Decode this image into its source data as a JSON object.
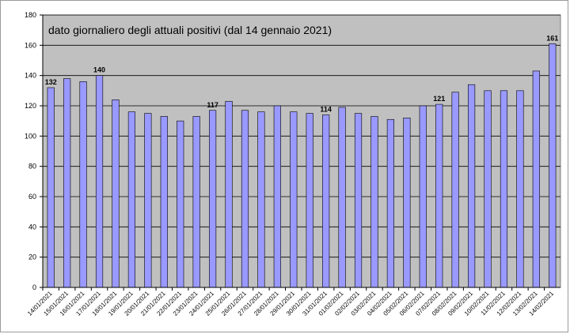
{
  "chart_data": {
    "type": "bar",
    "title": "dato giornaliero degli attuali positivi (dal 14 gennaio 2021)",
    "xlabel": "",
    "ylabel": "",
    "ylim": [
      0,
      180
    ],
    "yticks": [
      0,
      20,
      40,
      60,
      80,
      100,
      120,
      140,
      160,
      180
    ],
    "grid": true,
    "bar_color": "#9999ff",
    "plot_background": "#c0c0c0",
    "categories": [
      "14/01/2021",
      "15/01/2021",
      "16/01/2021",
      "17/01/2021",
      "18/01/2021",
      "19/01/2021",
      "20/01/2021",
      "21/01/2021",
      "22/01/2021",
      "23/01/2021",
      "24/01/2021",
      "25/01/2021",
      "26/01/2021",
      "27/01/2021",
      "28/01/2021",
      "29/01/2021",
      "30/01/2021",
      "31/01/2021",
      "01/02/2021",
      "02/02/2021",
      "03/02/2021",
      "04/02/2021",
      "05/02/2021",
      "06/02/2021",
      "07/02/2021",
      "08/02/2021",
      "09/02/2021",
      "10/02/2021",
      "11/02/2021",
      "12/02/2021",
      "13/02/2021",
      "14/02/2021"
    ],
    "values": [
      132,
      138,
      136,
      140,
      124,
      116,
      115,
      113,
      110,
      113,
      117,
      123,
      117,
      116,
      120,
      116,
      115,
      114,
      119,
      115,
      113,
      111,
      112,
      120,
      121,
      129,
      134,
      130,
      130,
      130,
      143,
      161
    ],
    "labeled_points": [
      {
        "index": 0,
        "text": "132"
      },
      {
        "index": 3,
        "text": "140"
      },
      {
        "index": 10,
        "text": "117"
      },
      {
        "index": 17,
        "text": "114"
      },
      {
        "index": 24,
        "text": "121"
      },
      {
        "index": 31,
        "text": "161"
      }
    ]
  }
}
